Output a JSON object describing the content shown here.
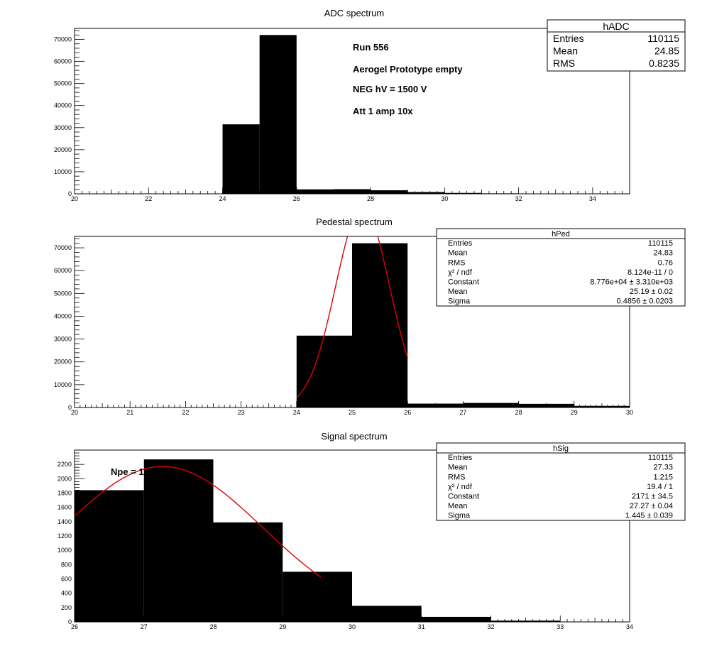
{
  "panels": [
    {
      "title": "ADC spectrum",
      "stats": {
        "name": "hADC",
        "rows": [
          [
            "Entries",
            "110115"
          ],
          [
            "Mean",
            "24.85"
          ],
          [
            "RMS",
            "0.8235"
          ]
        ]
      },
      "annotations": [
        "Run  556",
        "Aerogel Prototype empty",
        "NEG hV = 1500 V",
        "Att 1 amp 10x"
      ]
    },
    {
      "title": "Pedestal spectrum",
      "stats": {
        "name": "hPed",
        "rows": [
          [
            "Entries",
            "110115"
          ],
          [
            "Mean",
            "24.83"
          ],
          [
            "RMS",
            "0.76"
          ],
          [
            "χ² / ndf",
            "8.124e-11 / 0"
          ],
          [
            "Constant",
            "8.776e+04 ± 3.310e+03"
          ],
          [
            "Mean",
            "25.19 ± 0.02"
          ],
          [
            "Sigma",
            "0.4856 ± 0.0203"
          ]
        ]
      },
      "annotations": []
    },
    {
      "title": "Signal spectrum",
      "stats": {
        "name": "hSig",
        "rows": [
          [
            "Entries",
            "110115"
          ],
          [
            "Mean",
            "27.33"
          ],
          [
            "RMS",
            "1.215"
          ],
          [
            "χ² / ndf",
            "19.4 / 1"
          ],
          [
            "Constant",
            "2171 ± 34.5"
          ],
          [
            "Mean",
            "27.27 ± 0.04"
          ],
          [
            "Sigma",
            "1.445 ± 0.039"
          ]
        ]
      },
      "annotations": [
        "Npe = 1"
      ]
    }
  ],
  "chart_data": [
    {
      "type": "bar",
      "title": "ADC spectrum",
      "xlim": [
        20,
        35
      ],
      "ylim": [
        0,
        75000
      ],
      "xticks": [
        20,
        22,
        24,
        26,
        28,
        30,
        32,
        34
      ],
      "yticks": [
        0,
        10000,
        20000,
        30000,
        40000,
        50000,
        60000,
        70000
      ],
      "bin_edges": [
        24,
        25,
        26,
        27,
        28,
        29,
        30,
        31,
        32,
        33,
        34
      ],
      "values": [
        31500,
        72000,
        2000,
        2100,
        1600,
        800,
        400,
        200,
        150,
        100
      ],
      "fit": null
    },
    {
      "type": "bar",
      "title": "Pedestal spectrum",
      "xlim": [
        20,
        30
      ],
      "ylim": [
        0,
        75000
      ],
      "xticks": [
        20,
        21,
        22,
        23,
        24,
        25,
        26,
        27,
        28,
        29,
        30
      ],
      "yticks": [
        0,
        10000,
        20000,
        30000,
        40000,
        50000,
        60000,
        70000
      ],
      "bin_edges": [
        24,
        25,
        26,
        27,
        28,
        29,
        30
      ],
      "values": [
        31500,
        72000,
        1700,
        2000,
        1600,
        700
      ],
      "fit": {
        "type": "gaus",
        "constant": 87760,
        "mean": 25.19,
        "sigma": 0.4856,
        "range": [
          24,
          26
        ]
      }
    },
    {
      "type": "bar",
      "title": "Signal spectrum",
      "xlim": [
        26,
        34
      ],
      "ylim": [
        0,
        2400
      ],
      "xticks": [
        26,
        27,
        28,
        29,
        30,
        31,
        32,
        33,
        34
      ],
      "yticks": [
        0,
        200,
        400,
        600,
        800,
        1000,
        1200,
        1400,
        1600,
        1800,
        2000,
        2200
      ],
      "bin_edges": [
        26,
        27,
        28,
        29,
        30,
        31,
        32,
        33,
        34
      ],
      "values": [
        1840,
        2270,
        1390,
        700,
        225,
        70,
        18,
        5
      ],
      "fit": {
        "type": "gaus",
        "constant": 2171,
        "mean": 27.27,
        "sigma": 1.445,
        "range": [
          26,
          29.55
        ]
      }
    }
  ]
}
